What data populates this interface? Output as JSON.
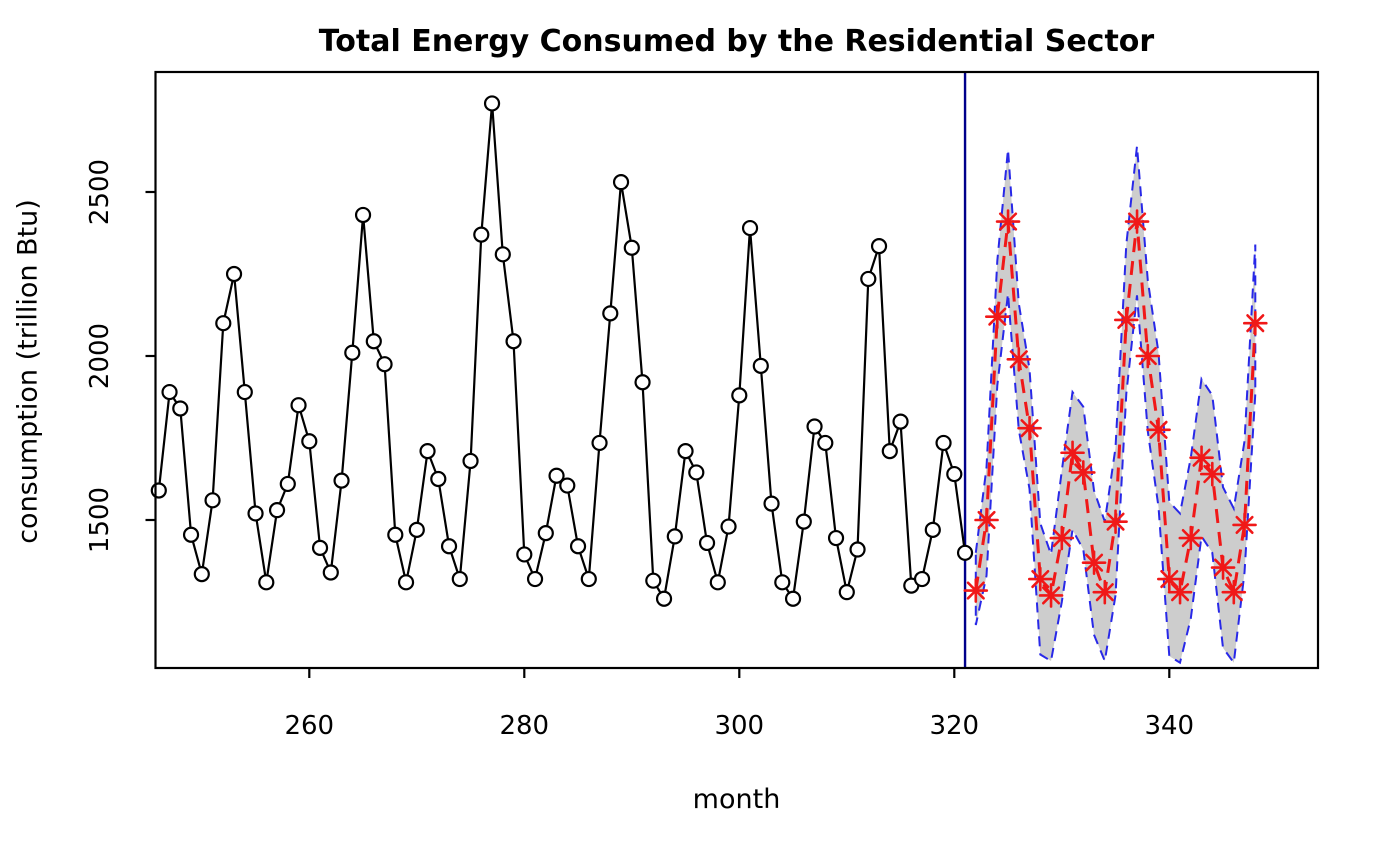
{
  "chart_data": {
    "type": "line",
    "title": "Total Energy Consumed by the Residential Sector",
    "xlabel": "month",
    "ylabel": "consumption (trillion Btu)",
    "x_ticks": [
      260,
      280,
      300,
      320,
      340
    ],
    "y_ticks": [
      1500,
      2000,
      2500
    ],
    "xlim": [
      245.7,
      353.9
    ],
    "ylim": [
      1049,
      2866
    ],
    "grid": false,
    "legend": "none",
    "forecast_origin_month": 321,
    "series": [
      {
        "name": "observed",
        "style": "solid black line with open circle markers",
        "color": "#000000",
        "x_start": 246,
        "x_step": 1,
        "values": [
          1590,
          1890,
          1840,
          1455,
          1335,
          1560,
          2100,
          2250,
          1890,
          1520,
          1310,
          1530,
          1610,
          1850,
          1740,
          1415,
          1340,
          1620,
          2010,
          2430,
          2045,
          1975,
          1455,
          1310,
          1470,
          1710,
          1625,
          1420,
          1320,
          1680,
          2370,
          2770,
          2310,
          2045,
          1395,
          1320,
          1460,
          1635,
          1605,
          1420,
          1320,
          1735,
          2130,
          2530,
          2330,
          1920,
          1315,
          1260,
          1450,
          1710,
          1645,
          1430,
          1310,
          1480,
          1880,
          2390,
          1970,
          1550,
          1310,
          1260,
          1495,
          1785,
          1735,
          1445,
          1280,
          1410,
          2235,
          2335,
          1710,
          1800,
          1300,
          1320,
          1470,
          1735,
          1640,
          1400
        ]
      },
      {
        "name": "forecast",
        "style": "dashed red line with asterisk markers",
        "color": "#f01818",
        "x_start": 322,
        "x_step": 1,
        "values": [
          1285,
          1500,
          2120,
          2410,
          1990,
          1780,
          1320,
          1270,
          1445,
          1705,
          1645,
          1370,
          1280,
          1495,
          2110,
          2410,
          2000,
          1775,
          1320,
          1280,
          1445,
          1690,
          1640,
          1355,
          1280,
          1485,
          2100
        ]
      },
      {
        "name": "forecast-interval-upper",
        "style": "dashed blue band edge",
        "color": "#2828e8",
        "x_start": 322,
        "x_step": 1,
        "values": [
          1400,
          1660,
          2290,
          2630,
          2160,
          1960,
          1490,
          1395,
          1650,
          1890,
          1845,
          1590,
          1495,
          1720,
          2340,
          2640,
          2230,
          2010,
          1555,
          1520,
          1690,
          1930,
          1880,
          1600,
          1535,
          1740,
          2340
        ]
      },
      {
        "name": "forecast-interval-lower",
        "style": "dashed blue band edge",
        "color": "#2828e8",
        "x_start": 322,
        "x_step": 1,
        "values": [
          1180,
          1330,
          1910,
          2190,
          1775,
          1595,
          1090,
          1070,
          1250,
          1470,
          1410,
          1150,
          1070,
          1270,
          1885,
          2185,
          1770,
          1540,
          1085,
          1065,
          1200,
          1450,
          1400,
          1110,
          1065,
          1340,
          1885
        ]
      }
    ],
    "colors": {
      "band_fill": "#cdcdcd",
      "band_border": "#2828e8",
      "vline": "#00008b",
      "axis": "#000000",
      "background": "#ffffff"
    }
  }
}
